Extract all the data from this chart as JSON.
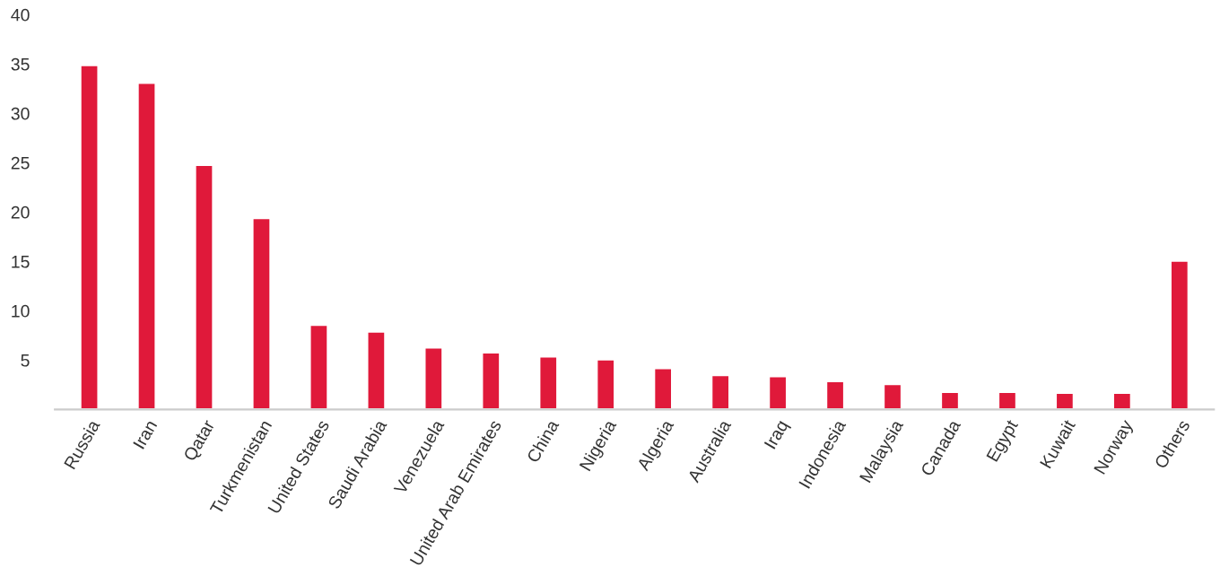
{
  "chart_data": {
    "type": "bar",
    "categories": [
      "Russia",
      "Iran",
      "Qatar",
      "Turkmenistan",
      "United States",
      "Saudi Arabia",
      "Venezuela",
      "United Arab Emirates",
      "China",
      "Nigeria",
      "Algeria",
      "Australia",
      "Iraq",
      "Indonesia",
      "Malaysia",
      "Canada",
      "Egypt",
      "Kuwait",
      "Norway",
      "Others"
    ],
    "values": [
      34.9,
      33.1,
      24.8,
      19.4,
      8.6,
      7.9,
      6.3,
      5.8,
      5.4,
      5.1,
      4.2,
      3.5,
      3.4,
      2.9,
      2.6,
      1.8,
      1.8,
      1.7,
      1.7,
      15.1
    ],
    "color": "#e0193a",
    "ylim": [
      0,
      40
    ],
    "yticks": [
      5,
      10,
      15,
      20,
      25,
      30,
      35,
      40
    ],
    "grid": false,
    "legend": false
  }
}
